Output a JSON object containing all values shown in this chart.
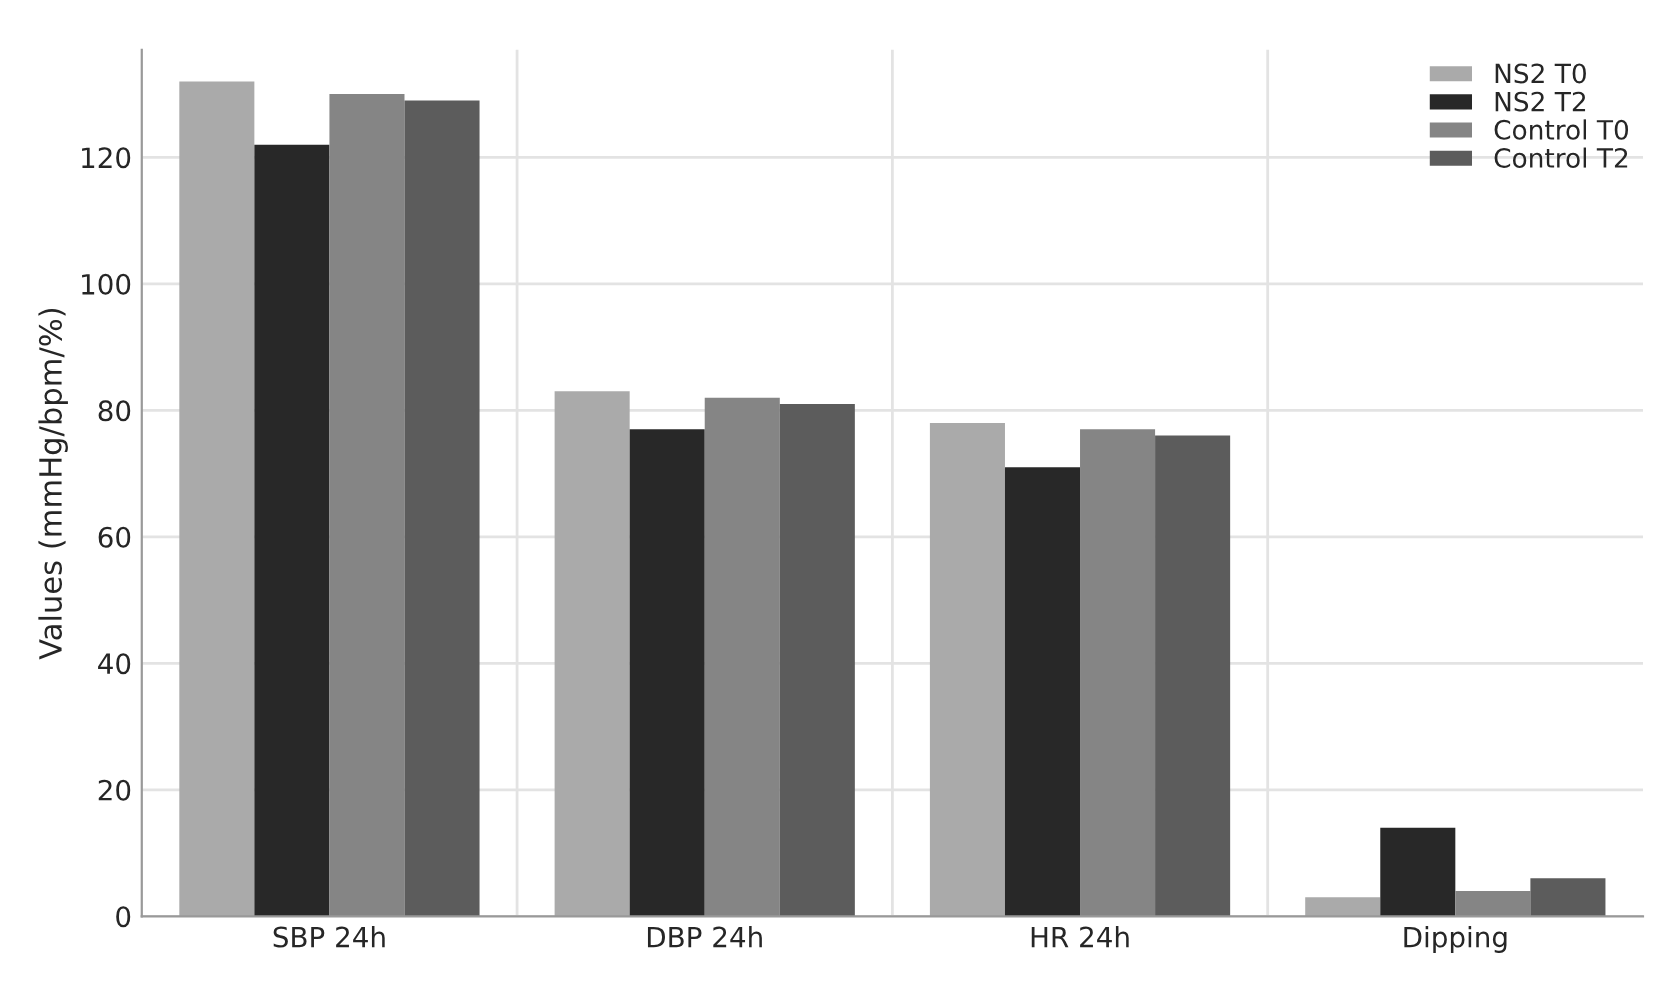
{
  "chart_data": {
    "type": "bar",
    "ylabel": "Values (mmHg/bpm/%)",
    "categories": [
      "SBP 24h",
      "DBP 24h",
      "HR 24h",
      "Dipping"
    ],
    "series": [
      {
        "name": "NS2 T0",
        "color": "#aaaaaa",
        "values": [
          132,
          83,
          78,
          3
        ]
      },
      {
        "name": "NS2 T2",
        "color": "#282828",
        "values": [
          122,
          77,
          71,
          14
        ]
      },
      {
        "name": "Control T0",
        "color": "#858585",
        "values": [
          130,
          82,
          77,
          4
        ]
      },
      {
        "name": "Control T2",
        "color": "#5c5c5c",
        "values": [
          129,
          81,
          76,
          6
        ]
      }
    ],
    "ylim": [
      0,
      137
    ],
    "yticks": [
      0,
      20,
      40,
      60,
      80,
      100,
      120
    ],
    "grid": true,
    "legend": "top right"
  }
}
